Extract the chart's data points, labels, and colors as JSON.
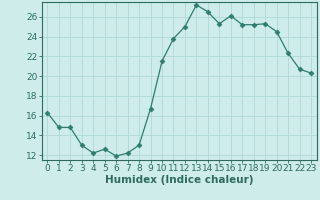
{
  "x": [
    0,
    1,
    2,
    3,
    4,
    5,
    6,
    7,
    8,
    9,
    10,
    11,
    12,
    13,
    14,
    15,
    16,
    17,
    18,
    19,
    20,
    21,
    22,
    23
  ],
  "y": [
    16.3,
    14.8,
    14.8,
    13.0,
    12.2,
    12.6,
    11.9,
    12.2,
    13.0,
    16.7,
    21.5,
    23.8,
    25.0,
    27.2,
    26.5,
    25.3,
    26.1,
    25.2,
    25.2,
    25.3,
    24.5,
    22.3,
    20.7,
    20.3
  ],
  "line_color": "#2e7d6e",
  "marker": "D",
  "marker_size": 2.5,
  "bg_color": "#ceecea",
  "grid_color": "#b0d8d4",
  "xlabel": "Humidex (Indice chaleur)",
  "xlim": [
    -0.5,
    23.5
  ],
  "ylim": [
    11.5,
    27.5
  ],
  "yticks": [
    12,
    14,
    16,
    18,
    20,
    22,
    24,
    26
  ],
  "xticks": [
    0,
    1,
    2,
    3,
    4,
    5,
    6,
    7,
    8,
    9,
    10,
    11,
    12,
    13,
    14,
    15,
    16,
    17,
    18,
    19,
    20,
    21,
    22,
    23
  ],
  "xtick_labels": [
    "0",
    "1",
    "2",
    "3",
    "4",
    "5",
    "6",
    "7",
    "8",
    "9",
    "10",
    "11",
    "12",
    "13",
    "14",
    "15",
    "16",
    "17",
    "18",
    "19",
    "20",
    "21",
    "22",
    "23"
  ],
  "tick_color": "#2e6b5e",
  "label_fontsize": 6.5,
  "xlabel_fontsize": 7.5,
  "spine_color": "#2e6b5e"
}
